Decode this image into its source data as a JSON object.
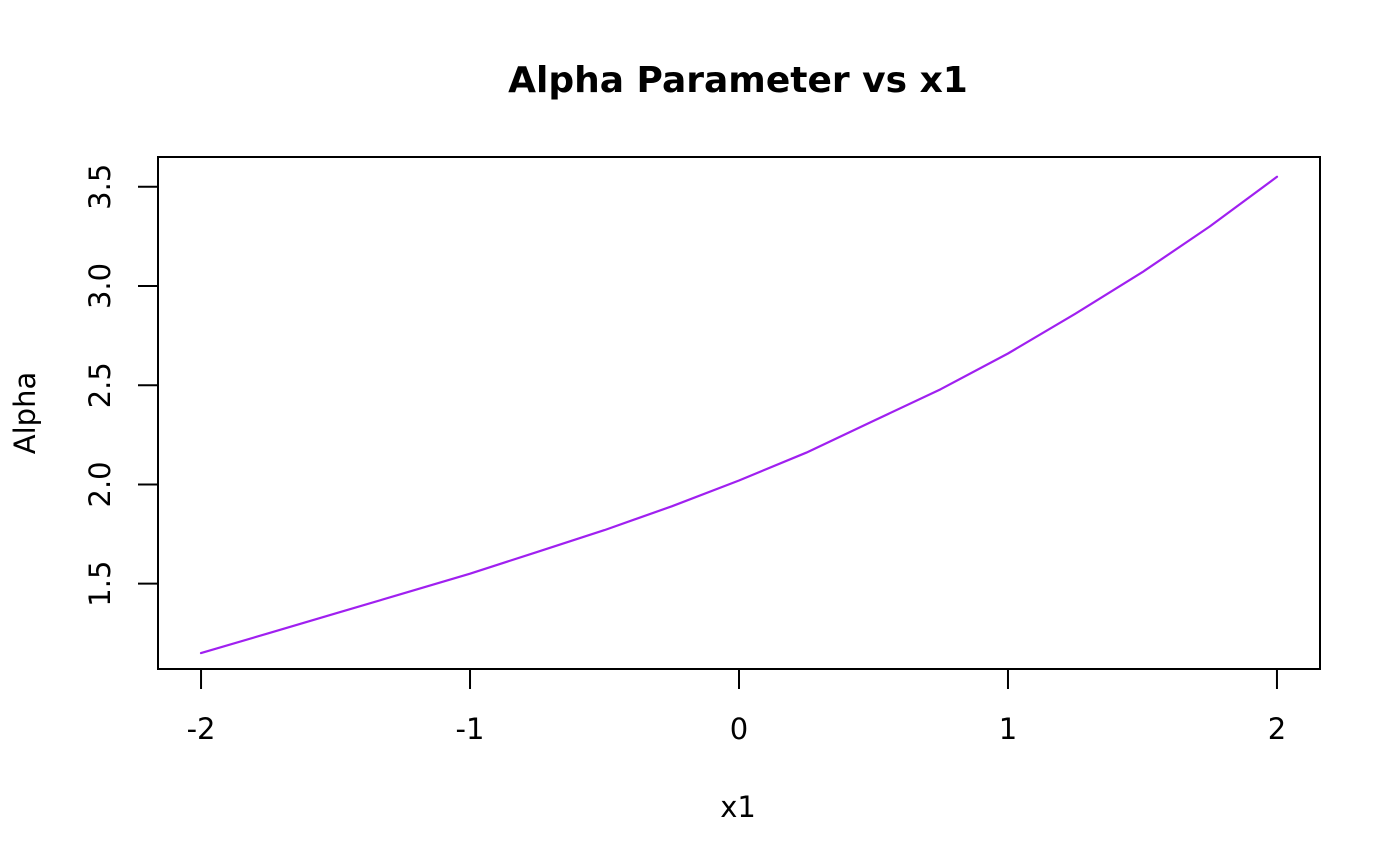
{
  "chart_data": {
    "type": "line",
    "title": "Alpha Parameter vs x1",
    "xlabel": "x1",
    "ylabel": "Alpha",
    "xlim": [
      -2.16,
      2.16
    ],
    "ylim": [
      1.07,
      3.65
    ],
    "x_ticks": [
      -2,
      -1,
      0,
      1,
      2
    ],
    "x_tick_labels": [
      "-2",
      "-1",
      "0",
      "1",
      "2"
    ],
    "y_ticks": [
      1.5,
      2.0,
      2.5,
      3.0,
      3.5
    ],
    "y_tick_labels": [
      "1.5",
      "2.0",
      "2.5",
      "3.0",
      "3.5"
    ],
    "grid": false,
    "legend": "none",
    "series": [
      {
        "color": "#a020f0",
        "x": [
          -2.0,
          -1.75,
          -1.5,
          -1.25,
          -1.0,
          -0.75,
          -0.5,
          -0.25,
          0.0,
          0.25,
          0.5,
          0.75,
          1.0,
          1.25,
          1.5,
          1.75,
          2.0
        ],
        "y": [
          1.15,
          1.25,
          1.35,
          1.45,
          1.55,
          1.66,
          1.77,
          1.89,
          2.02,
          2.16,
          2.32,
          2.48,
          2.66,
          2.86,
          3.07,
          3.3,
          3.55
        ]
      }
    ]
  }
}
